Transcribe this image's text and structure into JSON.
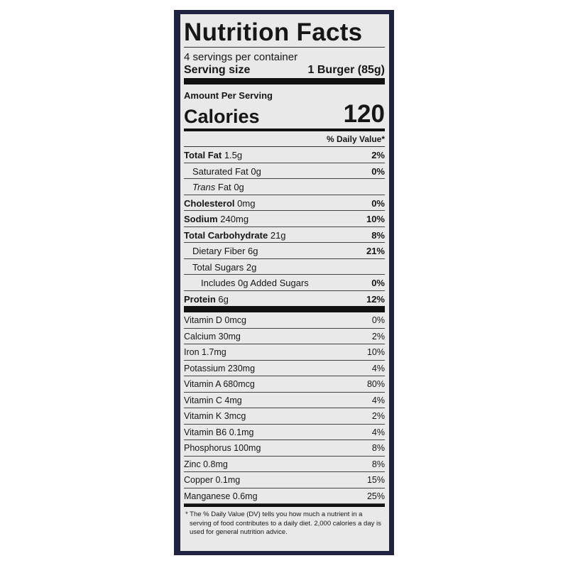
{
  "title": "Nutrition Facts",
  "servings_per_container": "4 servings per container",
  "serving_size_label": "Serving size",
  "serving_size_value": "1 Burger (85g)",
  "amount_per_serving": "Amount Per Serving",
  "calories_label": "Calories",
  "calories_value": "120",
  "dv_header": "% Daily Value*",
  "nutrients": [
    {
      "name": "Total Fat",
      "amount": "1.5g",
      "dv": "2%",
      "bold": true,
      "indent": 0
    },
    {
      "name": "Saturated Fat",
      "amount": "0g",
      "dv": "0%",
      "bold": false,
      "indent": 1
    },
    {
      "name": "Trans",
      "name_suffix": "Fat",
      "amount": "0g",
      "dv": "",
      "bold": false,
      "indent": 1
    },
    {
      "name": "Cholesterol",
      "amount": "0mg",
      "dv": "0%",
      "bold": true,
      "indent": 0
    },
    {
      "name": "Sodium",
      "amount": "240mg",
      "dv": "10%",
      "bold": true,
      "indent": 0
    },
    {
      "name": "Total Carbohydrate",
      "amount": "21g",
      "dv": "8%",
      "bold": true,
      "indent": 0
    },
    {
      "name": "Dietary Fiber",
      "amount": "6g",
      "dv": "21%",
      "bold": false,
      "indent": 1
    },
    {
      "name": "Total Sugars",
      "amount": "2g",
      "dv": "",
      "bold": false,
      "indent": 1
    },
    {
      "name": "Includes 0g Added Sugars",
      "amount": "",
      "dv": "0%",
      "bold": false,
      "indent": 2
    },
    {
      "name": "Protein",
      "amount": "6g",
      "dv": "12%",
      "bold": true,
      "indent": 0
    }
  ],
  "vitamins": [
    {
      "name": "Vitamin D 0mcg",
      "dv": "0%"
    },
    {
      "name": "Calcium 30mg",
      "dv": "2%"
    },
    {
      "name": "Iron 1.7mg",
      "dv": "10%"
    },
    {
      "name": "Potassium 230mg",
      "dv": "4%"
    },
    {
      "name": "Vitamin A 680mcg",
      "dv": "80%"
    },
    {
      "name": "Vitamin C 4mg",
      "dv": "4%"
    },
    {
      "name": "Vitamin K 3mcg",
      "dv": "2%"
    },
    {
      "name": "Vitamin B6 0.1mg",
      "dv": "4%"
    },
    {
      "name": "Phosphorus 100mg",
      "dv": "8%"
    },
    {
      "name": "Zinc 0.8mg",
      "dv": "8%"
    },
    {
      "name": "Copper 0.1mg",
      "dv": "15%"
    },
    {
      "name": "Manganese 0.6mg",
      "dv": "25%"
    }
  ],
  "footnote": "* The % Daily Value (DV) tells you how much a nutrient in a serving of food contributes to a daily diet. 2,000 calories a day is used for general nutrition advice."
}
